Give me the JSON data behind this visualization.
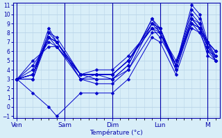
{
  "title": "",
  "xlabel": "Température (°c)",
  "ylabel": "",
  "background_color": "#d8eef8",
  "line_color": "#0000cc",
  "marker_color": "#0000cc",
  "grid_color": "#b8d4e8",
  "axis_color": "#0000aa",
  "ylim": [
    -1,
    11
  ],
  "yticks": [
    -1,
    0,
    1,
    2,
    3,
    4,
    5,
    6,
    7,
    8,
    9,
    10,
    11
  ],
  "x_day_labels": [
    "Ven",
    "Sam",
    "Dim",
    "Lun",
    "M"
  ],
  "x_day_positions": [
    0,
    6,
    12,
    18,
    24
  ],
  "xlim": [
    -0.5,
    25.5
  ],
  "num_steps": 26,
  "series": [
    [
      3.0,
      3.5,
      8.0,
      7.5,
      3.5,
      3.5,
      3.0,
      4.5,
      9.5,
      8.5,
      4.5,
      11.0,
      10.0,
      7.0,
      5.0
    ],
    [
      3.0,
      3.5,
      8.5,
      7.0,
      3.5,
      3.0,
      3.0,
      4.5,
      9.5,
      8.0,
      4.5,
      10.5,
      9.5,
      6.5,
      5.0
    ],
    [
      3.0,
      4.0,
      7.5,
      7.0,
      3.5,
      3.5,
      3.5,
      5.0,
      9.0,
      8.0,
      4.5,
      10.0,
      9.0,
      6.0,
      5.5
    ],
    [
      3.0,
      3.0,
      8.0,
      7.0,
      3.0,
      3.0,
      3.0,
      4.0,
      9.0,
      8.5,
      4.0,
      9.5,
      8.5,
      5.5,
      5.0
    ],
    [
      3.0,
      5.0,
      6.5,
      6.5,
      3.5,
      4.0,
      4.0,
      5.5,
      8.5,
      8.0,
      5.0,
      9.0,
      8.0,
      7.0,
      6.0
    ],
    [
      3.0,
      4.5,
      7.0,
      6.5,
      3.5,
      3.5,
      3.5,
      5.0,
      9.0,
      8.5,
      4.5,
      9.5,
      8.5,
      7.0,
      6.0
    ],
    [
      3.0,
      3.5,
      7.5,
      7.0,
      3.0,
      3.5,
      3.5,
      5.0,
      8.5,
      7.5,
      4.5,
      9.0,
      8.5,
      7.0,
      5.5
    ],
    [
      3.0,
      1.5,
      0.0,
      -1.0,
      1.5,
      1.5,
      1.5,
      3.0,
      7.5,
      7.0,
      3.5,
      8.5,
      8.0,
      6.0,
      5.0
    ],
    [
      3.0,
      3.0,
      7.5,
      6.5,
      3.0,
      2.5,
      2.5,
      4.0,
      8.0,
      8.0,
      4.0,
      9.0,
      8.5,
      6.5,
      5.5
    ],
    [
      3.0,
      3.5,
      7.5,
      7.0,
      3.5,
      3.5,
      3.5,
      5.0,
      8.5,
      8.5,
      4.5,
      9.5,
      9.0,
      7.0,
      6.0
    ]
  ],
  "x_indices": [
    0,
    2,
    4,
    5,
    8,
    10,
    12,
    14,
    17,
    18,
    20,
    22,
    23,
    24,
    25
  ]
}
